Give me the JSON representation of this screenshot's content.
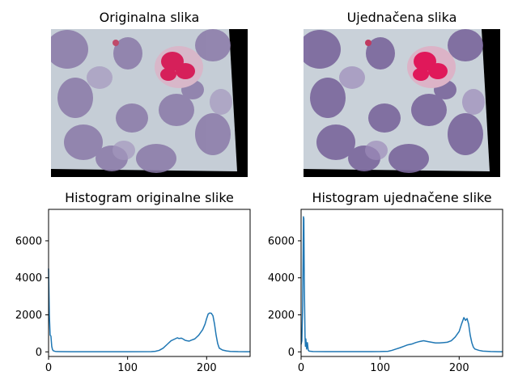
{
  "figure": {
    "titles": {
      "orig_image": "Originalna slika",
      "eq_image": "Ujednačena slika"
    }
  },
  "chart_data": [
    {
      "type": "line",
      "title": "Histogram originalne slike",
      "xlabel": "",
      "ylabel": "",
      "xlim": [
        0,
        255
      ],
      "ylim": [
        -250,
        7700
      ],
      "xticks": [
        0,
        100,
        200
      ],
      "yticks": [
        0,
        2000,
        4000,
        6000
      ],
      "grid": false,
      "color": "#1f77b4",
      "series": [
        {
          "x": [
            0,
            1,
            2,
            3,
            4,
            5,
            6,
            8,
            10,
            15,
            30,
            60,
            100,
            130,
            135,
            140,
            145,
            150,
            155,
            160,
            163,
            165,
            168,
            170,
            173,
            175,
            178,
            180,
            185,
            190,
            195,
            198,
            200,
            202,
            204,
            206,
            208,
            210,
            212,
            214,
            216,
            220,
            225,
            230,
            240,
            250,
            255
          ],
          "y": [
            4500,
            2000,
            900,
            850,
            300,
            120,
            60,
            30,
            15,
            10,
            5,
            5,
            5,
            10,
            30,
            80,
            200,
            400,
            600,
            700,
            760,
            720,
            740,
            700,
            620,
            600,
            580,
            620,
            700,
            900,
            1200,
            1500,
            1800,
            2050,
            2100,
            2080,
            1950,
            1500,
            900,
            450,
            200,
            100,
            50,
            25,
            10,
            5,
            5
          ]
        }
      ]
    },
    {
      "type": "line",
      "title": "Histogram ujednačene slike",
      "xlabel": "",
      "ylabel": "",
      "xlim": [
        0,
        255
      ],
      "ylim": [
        -250,
        7700
      ],
      "xticks": [
        0,
        100,
        200
      ],
      "yticks": [
        0,
        2000,
        4000,
        6000
      ],
      "grid": false,
      "color": "#1f77b4",
      "series": [
        {
          "x": [
            0,
            1,
            2,
            3,
            3.5,
            4,
            5,
            5.5,
            6,
            7,
            8,
            9,
            10,
            15,
            30,
            60,
            90,
            100,
            110,
            115,
            120,
            125,
            130,
            135,
            140,
            145,
            150,
            155,
            160,
            165,
            170,
            175,
            180,
            185,
            190,
            195,
            200,
            203,
            206,
            208,
            210,
            212,
            214,
            216,
            218,
            220,
            225,
            230,
            240,
            250,
            255
          ],
          "y": [
            400,
            600,
            2500,
            7300,
            7200,
            4000,
            800,
            300,
            700,
            150,
            500,
            100,
            40,
            15,
            10,
            10,
            10,
            15,
            30,
            80,
            150,
            220,
            300,
            380,
            420,
            500,
            560,
            600,
            560,
            520,
            480,
            480,
            500,
            520,
            600,
            800,
            1100,
            1500,
            1850,
            1700,
            1800,
            1500,
            900,
            500,
            250,
            150,
            80,
            40,
            15,
            5,
            5
          ]
        }
      ]
    }
  ]
}
